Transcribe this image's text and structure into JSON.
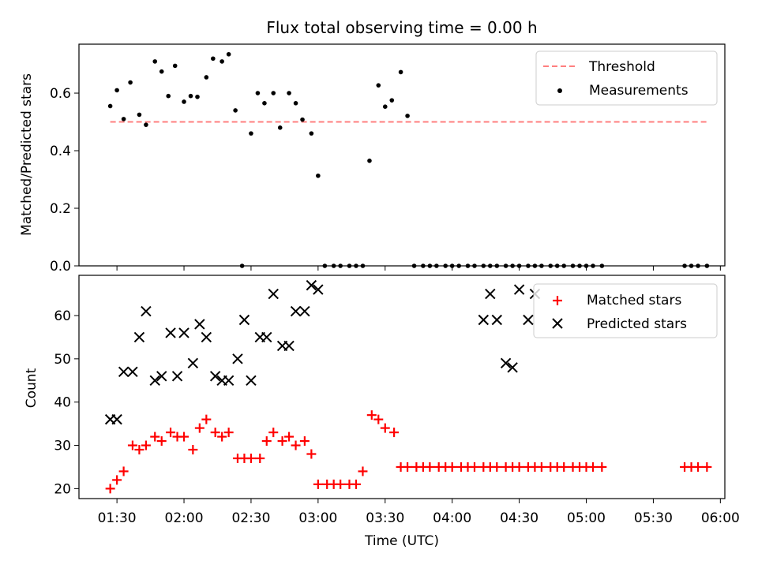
{
  "chart_data": [
    {
      "type": "scatter",
      "title": "Flux total observing time = 0.00 h",
      "xlabel": "",
      "ylabel": "Matched/Predicted stars",
      "ylim": [
        0,
        0.77
      ],
      "yticks": [
        0.0,
        0.2,
        0.4,
        0.6
      ],
      "ytick_labels": [
        "0.0",
        "0.2",
        "0.4",
        "0.6"
      ],
      "threshold": {
        "name": "Threshold",
        "value": 0.5,
        "x_start": "01:27",
        "x_end": "05:54",
        "color": "#ff7f7f"
      },
      "legend_position": "upper right",
      "series": [
        {
          "name": "Measurements",
          "color": "#000000",
          "marker": "dot",
          "x": [
            "01:27",
            "01:30",
            "01:33",
            "01:36",
            "01:40",
            "01:43",
            "01:47",
            "01:50",
            "01:53",
            "01:56",
            "02:00",
            "02:03",
            "02:06",
            "02:10",
            "02:13",
            "02:17",
            "02:20",
            "02:23",
            "02:26",
            "02:30",
            "02:33",
            "02:36",
            "02:40",
            "02:43",
            "02:47",
            "02:50",
            "02:53",
            "02:57",
            "03:00",
            "03:03",
            "03:07",
            "03:10",
            "03:14",
            "03:17",
            "03:20",
            "03:23",
            "03:27",
            "03:30",
            "03:33",
            "03:37",
            "03:40",
            "03:43",
            "03:47",
            "03:50",
            "03:53",
            "03:57",
            "04:00",
            "04:03",
            "04:07",
            "04:10",
            "04:14",
            "04:17",
            "04:20",
            "04:24",
            "04:27",
            "04:30",
            "04:34",
            "04:37",
            "04:40",
            "04:44",
            "04:47",
            "04:50",
            "04:54",
            "04:57",
            "05:00",
            "05:03",
            "05:07",
            "05:44",
            "05:47",
            "05:50",
            "05:54"
          ],
          "y": [
            0.555,
            0.61,
            0.51,
            0.637,
            0.525,
            0.49,
            0.71,
            0.675,
            0.59,
            0.695,
            0.57,
            0.59,
            0.587,
            0.655,
            0.72,
            0.71,
            0.735,
            0.54,
            0.0,
            0.46,
            0.6,
            0.565,
            0.6,
            0.48,
            0.6,
            0.565,
            0.508,
            0.46,
            0.313,
            0.0,
            0.0,
            0.0,
            0.0,
            0.0,
            0.0,
            0.365,
            0.627,
            0.553,
            0.575,
            0.673,
            0.521,
            0.0,
            0.0,
            0.0,
            0.0,
            0.0,
            0.0,
            0.0,
            0.0,
            0.0,
            0.0,
            0.0,
            0.0,
            0.0,
            0.0,
            0.0,
            0.0,
            0.0,
            0.0,
            0.0,
            0.0,
            0.0,
            0.0,
            0.0,
            0.0,
            0.0,
            0.0,
            0.0,
            0.0,
            0.0,
            0.0
          ]
        }
      ]
    },
    {
      "type": "scatter",
      "title": "",
      "xlabel": "Time (UTC)",
      "ylabel": "Count",
      "ylim": [
        17.7,
        69.3
      ],
      "yticks": [
        20,
        30,
        40,
        50,
        60
      ],
      "ytick_labels": [
        "20",
        "30",
        "40",
        "50",
        "60"
      ],
      "xlim": [
        "01:13",
        "06:02"
      ],
      "xticks": [
        "01:30",
        "02:00",
        "02:30",
        "03:00",
        "03:30",
        "04:00",
        "04:30",
        "05:00",
        "05:30",
        "06:00"
      ],
      "legend_position": "upper right",
      "series": [
        {
          "name": "Matched stars",
          "color": "#ff0000",
          "marker": "plus",
          "x": [
            "01:27",
            "01:30",
            "01:33",
            "01:37",
            "01:40",
            "01:43",
            "01:47",
            "01:50",
            "01:54",
            "01:57",
            "02:00",
            "02:04",
            "02:07",
            "02:10",
            "02:14",
            "02:17",
            "02:20",
            "02:24",
            "02:27",
            "02:30",
            "02:34",
            "02:37",
            "02:40",
            "02:44",
            "02:47",
            "02:50",
            "02:54",
            "02:57",
            "03:00",
            "03:04",
            "03:07",
            "03:10",
            "03:14",
            "03:17",
            "03:20",
            "03:24",
            "03:27",
            "03:30",
            "03:34",
            "03:37",
            "03:40",
            "03:44",
            "03:47",
            "03:50",
            "03:54",
            "03:57",
            "04:00",
            "04:04",
            "04:07",
            "04:10",
            "04:14",
            "04:17",
            "04:20",
            "04:24",
            "04:27",
            "04:30",
            "04:34",
            "04:37",
            "04:40",
            "04:44",
            "04:47",
            "04:50",
            "04:54",
            "04:57",
            "05:00",
            "05:03",
            "05:07",
            "05:44",
            "05:47",
            "05:50",
            "05:54"
          ],
          "y": [
            20,
            22,
            24,
            30,
            29,
            30,
            32,
            31,
            33,
            32,
            32,
            29,
            34,
            36,
            33,
            32,
            33,
            27,
            27,
            27,
            27,
            31,
            33,
            31,
            32,
            30,
            31,
            28,
            21,
            21,
            21,
            21,
            21,
            21,
            24,
            37,
            36,
            34,
            33,
            25,
            25,
            25,
            25,
            25,
            25,
            25,
            25,
            25,
            25,
            25,
            25,
            25,
            25,
            25,
            25,
            25,
            25,
            25,
            25,
            25,
            25,
            25,
            25,
            25,
            25,
            25,
            25,
            25,
            25,
            25,
            25
          ]
        },
        {
          "name": "Predicted stars",
          "color": "#000000",
          "marker": "x",
          "x": [
            "01:27",
            "01:30",
            "01:33",
            "01:37",
            "01:40",
            "01:43",
            "01:47",
            "01:50",
            "01:54",
            "01:57",
            "02:00",
            "02:04",
            "02:07",
            "02:10",
            "02:14",
            "02:17",
            "02:20",
            "02:24",
            "02:27",
            "02:30",
            "02:34",
            "02:37",
            "02:40",
            "02:44",
            "02:47",
            "02:50",
            "02:54",
            "02:57",
            "03:00",
            "04:14",
            "04:17",
            "04:20",
            "04:24",
            "04:27",
            "04:30",
            "04:34",
            "04:37"
          ],
          "y": [
            36,
            36,
            47,
            47,
            55,
            61,
            45,
            46,
            56,
            46,
            56,
            49,
            58,
            55,
            46,
            45,
            45,
            50,
            59,
            45,
            55,
            55,
            65,
            53,
            53,
            61,
            61,
            67,
            66,
            59,
            65,
            59,
            49,
            48,
            66,
            59,
            65
          ]
        }
      ]
    }
  ]
}
